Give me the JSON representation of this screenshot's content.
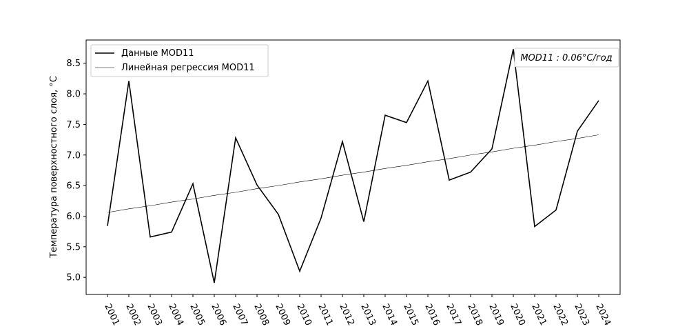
{
  "chart_data": {
    "type": "line",
    "title": "",
    "xlabel": "",
    "ylabel": "Температура поверхностного слоя, °C",
    "x": [
      2001,
      2002,
      2003,
      2004,
      2005,
      2006,
      2007,
      2008,
      2009,
      2010,
      2011,
      2012,
      2013,
      2014,
      2015,
      2016,
      2017,
      2018,
      2019,
      2020,
      2021,
      2022,
      2023,
      2024
    ],
    "x_tick_labels": [
      "2001",
      "2002",
      "2003",
      "2004",
      "2005",
      "2006",
      "2007",
      "2008",
      "2009",
      "2010",
      "2011",
      "2012",
      "2013",
      "2014",
      "2015",
      "2016",
      "2017",
      "2018",
      "2019",
      "2020",
      "2021",
      "2022",
      "2023",
      "2024"
    ],
    "ylim": [
      4.72,
      8.88
    ],
    "xlim": [
      2000,
      2025
    ],
    "y_ticks": [
      5.0,
      5.5,
      6.0,
      6.5,
      7.0,
      7.5,
      8.0,
      8.5
    ],
    "y_tick_labels": [
      "5.0",
      "5.5",
      "6.0",
      "6.5",
      "7.0",
      "7.5",
      "8.0",
      "8.5"
    ],
    "series": [
      {
        "name": "Данные MOD11",
        "color": "#000000",
        "values": [
          5.84,
          8.21,
          5.66,
          5.74,
          6.53,
          4.91,
          7.28,
          6.51,
          6.03,
          5.1,
          5.97,
          7.22,
          5.91,
          7.65,
          7.53,
          8.21,
          6.59,
          6.72,
          7.1,
          8.73,
          5.83,
          6.1,
          7.39,
          7.89
        ]
      },
      {
        "name": "Линейная регрессия MOD11",
        "color": "#000000",
        "style": "thin",
        "values": [
          6.06,
          6.12,
          6.17,
          6.23,
          6.28,
          6.34,
          6.39,
          6.45,
          6.5,
          6.56,
          6.61,
          6.67,
          6.72,
          6.78,
          6.83,
          6.89,
          6.94,
          7.0,
          7.05,
          7.11,
          7.16,
          7.22,
          7.27,
          7.33
        ]
      }
    ],
    "legend_position": "top-left",
    "annotation": {
      "text": "MOD11 : 0.06°C/год",
      "position": "top-right"
    },
    "grid": false
  }
}
